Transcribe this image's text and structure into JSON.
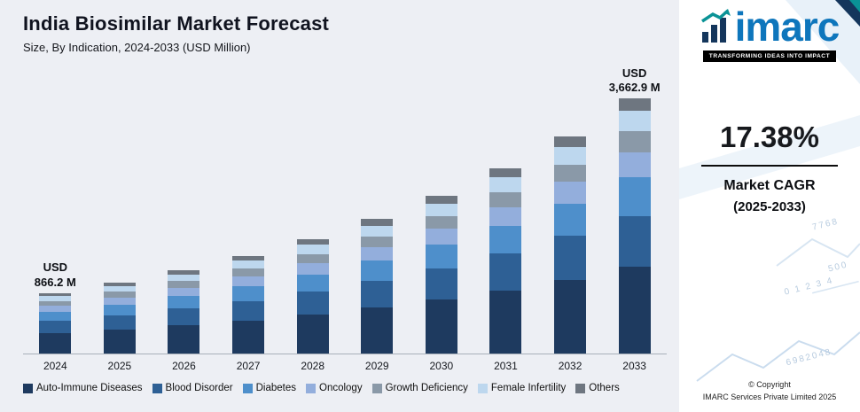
{
  "header": {
    "title": "India Biosimilar Market Forecast",
    "subtitle": "Size, By Indication, 2024-2033 (USD Million)"
  },
  "chart_data": {
    "type": "bar",
    "stacked": true,
    "title": "India Biosimilar Market Forecast",
    "subtitle": "Size, By Indication, 2024-2033 (USD Million)",
    "unit": "USD Million",
    "categories": [
      "2024",
      "2025",
      "2026",
      "2027",
      "2028",
      "2029",
      "2030",
      "2031",
      "2032",
      "2033"
    ],
    "totals": [
      866.2,
      1016.8,
      1193.5,
      1400.9,
      1644.4,
      1930.2,
      2265.6,
      2659.4,
      3121.6,
      3662.9
    ],
    "ylim": [
      0,
      3700
    ],
    "grid": false,
    "legend_position": "bottom",
    "series": [
      {
        "name": "Auto-Immune Diseases",
        "color": "#1E3A5F",
        "values": [
          294.5,
          345.7,
          405.8,
          476.3,
          559.1,
          656.3,
          770.3,
          904.2,
          1061.3,
          1245.4
        ]
      },
      {
        "name": "Blood Disorder",
        "color": "#2E6095",
        "values": [
          173.2,
          203.4,
          238.7,
          280.2,
          328.9,
          386.0,
          453.1,
          531.9,
          624.3,
          732.6
        ]
      },
      {
        "name": "Diabetes",
        "color": "#4E8FCB",
        "values": [
          129.9,
          152.5,
          179.0,
          210.1,
          246.7,
          289.5,
          339.8,
          398.9,
          468.2,
          549.4
        ]
      },
      {
        "name": "Oncology",
        "color": "#93AEDC",
        "values": [
          86.6,
          101.7,
          119.4,
          140.1,
          164.4,
          193.0,
          226.6,
          265.9,
          312.2,
          366.3
        ]
      },
      {
        "name": "Growth Deficiency",
        "color": "#8A99A8",
        "values": [
          69.3,
          81.3,
          95.5,
          112.1,
          131.6,
          154.4,
          181.2,
          212.8,
          249.7,
          293.0
        ]
      },
      {
        "name": "Female Infertility",
        "color": "#BDD7EE",
        "values": [
          69.3,
          81.3,
          95.5,
          112.1,
          131.6,
          154.4,
          181.2,
          212.8,
          249.7,
          293.0
        ]
      },
      {
        "name": "Others",
        "color": "#6E7680",
        "values": [
          43.3,
          50.8,
          59.7,
          70.0,
          82.2,
          96.5,
          113.3,
          133.0,
          156.1,
          183.1
        ]
      }
    ],
    "annotations": [
      {
        "category": "2024",
        "lines": [
          "USD",
          "866.2 M"
        ]
      },
      {
        "category": "2033",
        "lines": [
          "USD",
          "3,662.9 M"
        ]
      }
    ]
  },
  "sidebar": {
    "logo_text": "imarc",
    "tagline": "TRANSFORMING IDEAS INTO IMPACT",
    "cagr_value": "17.38%",
    "cagr_label_line1": "Market CAGR",
    "cagr_label_line2": "(2025-2033)",
    "copyright_line1": "© Copyright",
    "copyright_line2": "IMARC Services Private Limited 2025",
    "decor_numbers": [
      "7768",
      "500",
      "0 1 2 3 4",
      "6982048"
    ]
  }
}
